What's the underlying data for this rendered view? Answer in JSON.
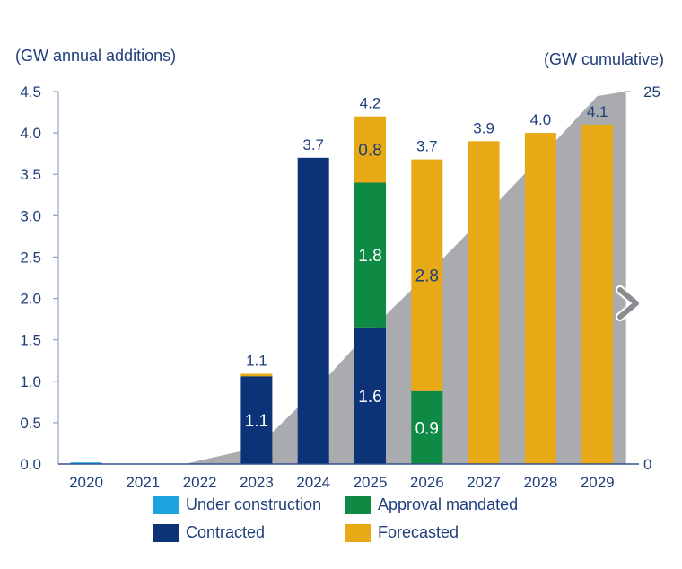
{
  "chart_data": {
    "type": "bar",
    "stacked": true,
    "left_axis_title": "(GW annual additions)",
    "right_axis_title": "(GW cumulative)",
    "categories": [
      "2020",
      "2021",
      "2022",
      "2023",
      "2024",
      "2025",
      "2026",
      "2027",
      "2028",
      "2029"
    ],
    "ylim": [
      0,
      4.5
    ],
    "yticks": [
      "0.0",
      "0.5",
      "1.0",
      "1.5",
      "2.0",
      "2.5",
      "3.0",
      "3.5",
      "4.0",
      "4.5"
    ],
    "y2lim": [
      0,
      25
    ],
    "y2ticks": [
      "0",
      "25"
    ],
    "series": [
      {
        "name": "Under construction",
        "color": "#1ca4e0",
        "values": [
          0.02,
          0,
          0,
          0,
          0,
          0,
          0,
          0,
          0,
          0
        ]
      },
      {
        "name": "Contracted",
        "color": "#0c3378",
        "values": [
          0,
          0,
          0,
          1.06,
          3.7,
          1.65,
          0,
          0,
          0,
          0
        ]
      },
      {
        "name": "Approval mandated",
        "color": "#0e8a45",
        "values": [
          0,
          0,
          0,
          0,
          0,
          1.75,
          0.88,
          0,
          0,
          0
        ]
      },
      {
        "name": "Forecasted",
        "color": "#e8a917",
        "values": [
          0,
          0,
          0,
          0.03,
          0,
          0.8,
          2.8,
          3.9,
          4.0,
          4.1
        ]
      }
    ],
    "totals": [
      "",
      "",
      "",
      "1.1",
      "3.7",
      "4.2",
      "3.7",
      "3.9",
      "4.0",
      "4.1"
    ],
    "segment_labels": [
      {
        "category": "2023",
        "series": "Contracted",
        "text": "1.1",
        "color": "#ffffff"
      },
      {
        "category": "2025",
        "series": "Contracted",
        "text": "1.6",
        "color": "#ffffff"
      },
      {
        "category": "2025",
        "series": "Approval mandated",
        "text": "1.8",
        "color": "#ffffff"
      },
      {
        "category": "2025",
        "series": "Forecasted",
        "text": "0.8",
        "color": "#1f3f7a"
      },
      {
        "category": "2026",
        "series": "Approval mandated",
        "text": "0.9",
        "color": "#ffffff"
      },
      {
        "category": "2026",
        "series": "Forecasted",
        "text": "2.8",
        "color": "#1f3f7a"
      }
    ],
    "cumulative_area": {
      "name": "Cumulative",
      "color": "#a9abaf",
      "x": [
        "2022",
        "2023",
        "2024",
        "2025",
        "2026",
        "2027",
        "2028",
        "2029"
      ],
      "values": [
        0,
        1.1,
        4.8,
        9.0,
        12.7,
        16.6,
        20.6,
        24.7
      ]
    },
    "legend_position": "bottom",
    "legend": [
      "Under construction",
      "Approval mandated",
      "Contracted",
      "Forecasted"
    ],
    "next_icon": "chevron-right-icon"
  }
}
